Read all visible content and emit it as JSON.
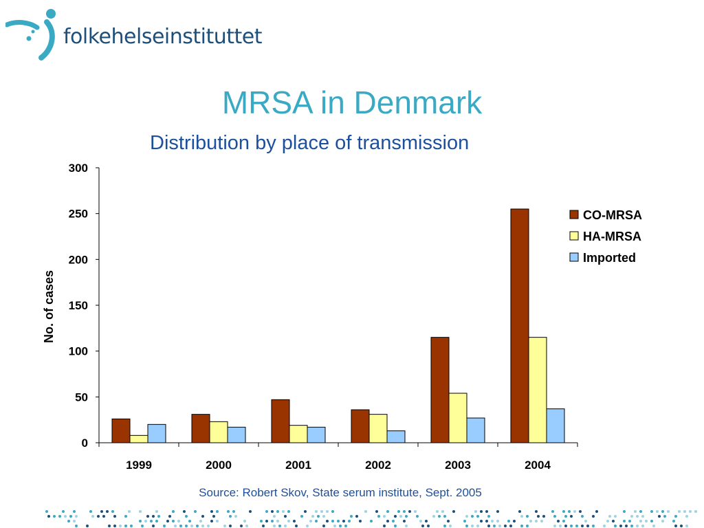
{
  "header": {
    "logo_text": "folkehelseinstituttet",
    "title": "MRSA in Denmark",
    "subtitle": "Distribution by place of transmission"
  },
  "footer": {
    "source": "Source: Robert Skov, State serum institute, Sept. 2005"
  },
  "colors": {
    "title": "#3aa9c4",
    "subtitle": "#1c4f9c",
    "logo_text": "#1e4f7a",
    "logo_mark": "#3aa9c4"
  },
  "icons": {
    "logo": "person-dots-logo-icon",
    "footer_pattern": "dot-pattern"
  },
  "chart_data": {
    "type": "bar",
    "title": "",
    "xlabel": "",
    "ylabel": "No. of cases",
    "categories": [
      "1999",
      "2000",
      "2001",
      "2002",
      "2003",
      "2004"
    ],
    "series": [
      {
        "name": "CO-MRSA",
        "color": "#993300",
        "values": [
          26,
          31,
          47,
          36,
          115,
          255
        ]
      },
      {
        "name": "HA-MRSA",
        "color": "#ffff99",
        "values": [
          8,
          23,
          19,
          31,
          54,
          115
        ]
      },
      {
        "name": "Imported",
        "color": "#99ccff",
        "values": [
          20,
          17,
          17,
          13,
          27,
          37
        ]
      }
    ],
    "ylim": [
      0,
      300
    ],
    "yticks": [
      "0",
      "50",
      "100",
      "150",
      "200",
      "250",
      "300"
    ],
    "grid": false,
    "legend_position": "right"
  }
}
